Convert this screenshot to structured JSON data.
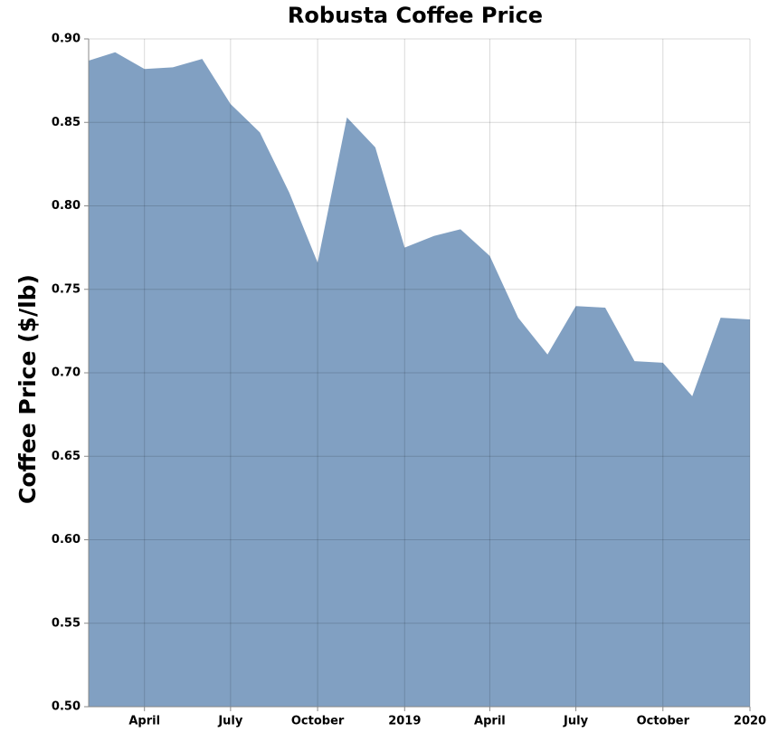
{
  "chart_data": {
    "type": "area",
    "title": "Robusta Coffee Price",
    "y_label": "Coffee Price ($/lb)",
    "x": [
      "2018-02",
      "2018-03",
      "2018-04",
      "2018-05",
      "2018-06",
      "2018-07",
      "2018-08",
      "2018-09",
      "2018-10",
      "2018-11",
      "2018-12",
      "2019-01",
      "2019-02",
      "2019-03",
      "2019-04",
      "2019-05",
      "2019-06",
      "2019-07",
      "2019-08",
      "2019-09",
      "2019-10",
      "2019-11",
      "2019-12",
      "2020-01"
    ],
    "values": [
      0.887,
      0.892,
      0.882,
      0.883,
      0.888,
      0.861,
      0.844,
      0.808,
      0.766,
      0.853,
      0.835,
      0.775,
      0.782,
      0.786,
      0.77,
      0.733,
      0.711,
      0.74,
      0.739,
      0.707,
      0.706,
      0.686,
      0.733,
      0.732
    ],
    "color": "#4c78a8",
    "xlim": [
      "2018-02",
      "2020-01"
    ],
    "xticks": [
      {
        "value": "2018-04",
        "label": "April"
      },
      {
        "value": "2018-07",
        "label": "July"
      },
      {
        "value": "2018-10",
        "label": "October"
      },
      {
        "value": "2019-01",
        "label": "2019"
      },
      {
        "value": "2019-04",
        "label": "April"
      },
      {
        "value": "2019-07",
        "label": "July"
      },
      {
        "value": "2019-10",
        "label": "October"
      },
      {
        "value": "2020-01",
        "label": "2020"
      }
    ],
    "ylim": [
      0.5,
      0.9
    ],
    "yticks": [
      {
        "value": 0.5,
        "label": "0.50"
      },
      0.55,
      {
        "value": 0.6,
        "label": "0.60"
      },
      0.65,
      {
        "value": 0.7,
        "label": "0.70"
      },
      0.75,
      {
        "value": 0.8,
        "label": "0.80"
      },
      0.85,
      {
        "value": 0.9,
        "label": "0.90"
      }
    ],
    "grid": true
  }
}
